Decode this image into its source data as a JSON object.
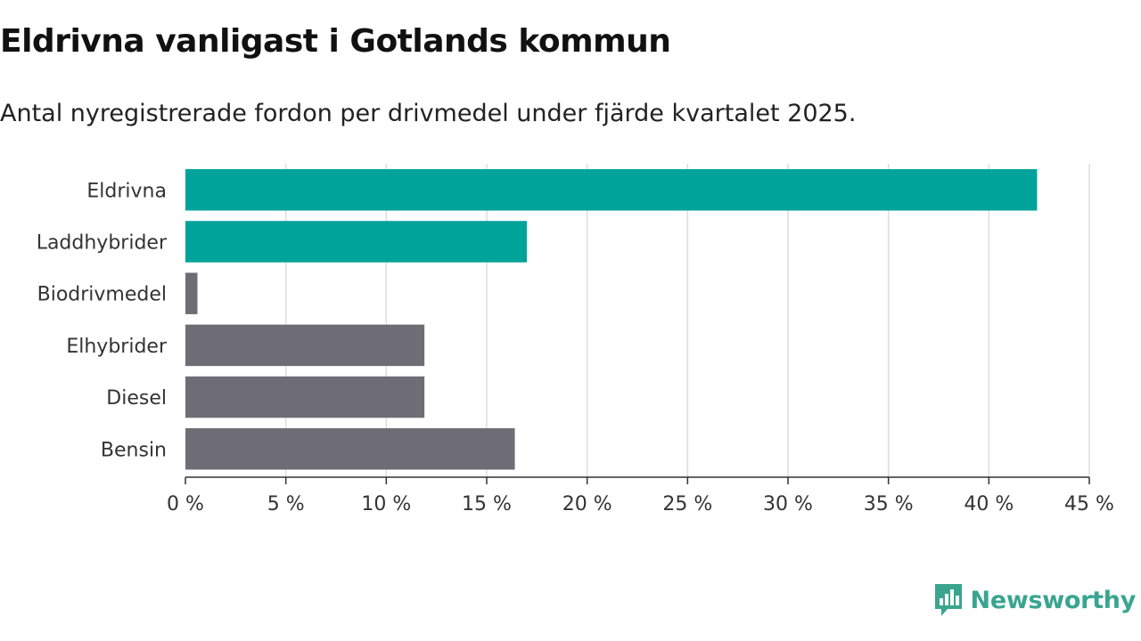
{
  "chart_data": {
    "type": "bar",
    "orientation": "horizontal",
    "title": "Eldrivna vanligast i Gotlands kommun",
    "subtitle": "Antal nyregistrerade fordon per drivmedel under fjärde kvartalet 2025.",
    "categories": [
      "Eldrivna",
      "Laddhybrider",
      "Biodrivmedel",
      "Elhybrider",
      "Diesel",
      "Bensin"
    ],
    "values": [
      42.4,
      17.0,
      0.6,
      11.9,
      11.9,
      16.4
    ],
    "colors": [
      "#00a39a",
      "#00a39a",
      "#6e6d75",
      "#6e6d75",
      "#6e6d75",
      "#6e6d75"
    ],
    "xlim": [
      0,
      45
    ],
    "xticks": [
      0,
      5,
      10,
      15,
      20,
      25,
      30,
      35,
      40,
      45
    ],
    "xtick_labels": [
      "0 %",
      "5 %",
      "10 %",
      "15 %",
      "20 %",
      "25 %",
      "30 %",
      "35 %",
      "40 %",
      "45 %"
    ],
    "xlabel": "",
    "ylabel": "",
    "grid": true
  },
  "brand": {
    "name": "Newsworthy",
    "color": "#3aa58f",
    "icon": "newsworthy-logo-icon"
  }
}
